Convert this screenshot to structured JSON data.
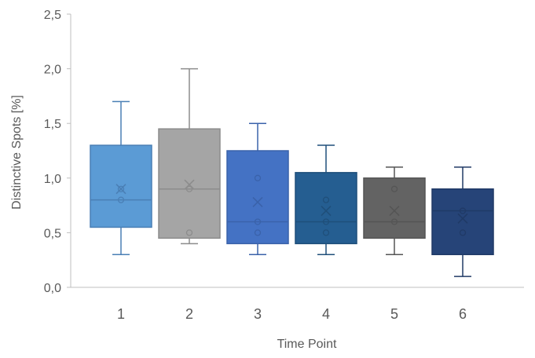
{
  "chart_data": {
    "type": "boxplot",
    "xlabel": "Time Point",
    "ylabel": "Distinctive Spots [%]",
    "ylim": [
      0,
      2.5
    ],
    "yticks": [
      "0,0",
      "0,5",
      "1,0",
      "1,5",
      "2,0",
      "2,5"
    ],
    "grid": false,
    "legend": "none",
    "categories": [
      "1",
      "2",
      "3",
      "4",
      "5",
      "6"
    ],
    "boxes": [
      {
        "category": "1",
        "color": "#5b9bd5",
        "whisker_color": "#4a7fb5",
        "min": 0.3,
        "q1": 0.55,
        "median": 0.8,
        "q3": 1.3,
        "max": 1.7,
        "mean": 0.9,
        "points": [
          0.8,
          0.9
        ]
      },
      {
        "category": "2",
        "color": "#a5a5a5",
        "whisker_color": "#8c8c8c",
        "min": 0.4,
        "q1": 0.45,
        "median": 0.9,
        "q3": 1.45,
        "max": 2.0,
        "mean": 0.94,
        "points": [
          0.9,
          0.5
        ]
      },
      {
        "category": "3",
        "color": "#4472c4",
        "whisker_color": "#3a62aa",
        "min": 0.3,
        "q1": 0.4,
        "median": 0.6,
        "q3": 1.25,
        "max": 1.5,
        "mean": 0.78,
        "points": [
          1.0,
          0.6,
          0.5
        ]
      },
      {
        "category": "4",
        "color": "#255e91",
        "whisker_color": "#1f4f7a",
        "min": 0.3,
        "q1": 0.4,
        "median": 0.6,
        "q3": 1.05,
        "max": 1.3,
        "mean": 0.7,
        "points": [
          0.8,
          0.6,
          0.5
        ]
      },
      {
        "category": "5",
        "color": "#636363",
        "whisker_color": "#555555",
        "min": 0.3,
        "q1": 0.45,
        "median": 0.6,
        "q3": 1.0,
        "max": 1.1,
        "mean": 0.7,
        "points": [
          0.9,
          0.6
        ]
      },
      {
        "category": "6",
        "color": "#264478",
        "whisker_color": "#203a66",
        "min": 0.1,
        "q1": 0.3,
        "median": 0.7,
        "q3": 0.9,
        "max": 1.1,
        "mean": 0.63,
        "points": [
          0.7,
          0.5
        ]
      }
    ]
  }
}
